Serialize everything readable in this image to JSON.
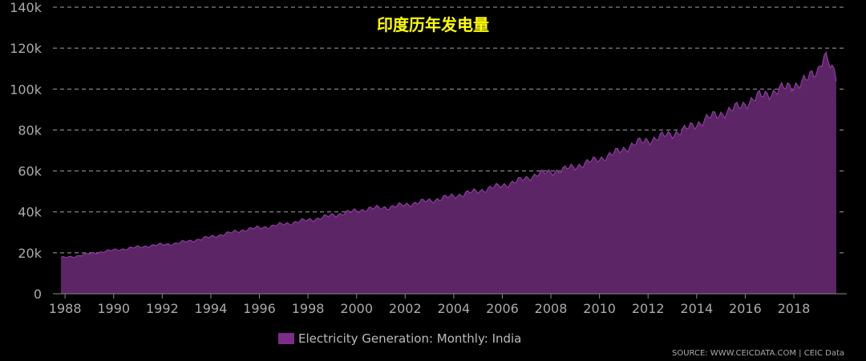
{
  "chart_data": {
    "type": "area",
    "title": "印度历年发电量",
    "xlabel": "",
    "ylabel": "",
    "x_range": [
      1987.83,
      2019.75
    ],
    "ylim": [
      0,
      140000
    ],
    "y_ticks": [
      0,
      20000,
      40000,
      60000,
      80000,
      100000,
      120000,
      140000
    ],
    "y_tick_labels": [
      "0",
      "20k",
      "40k",
      "60k",
      "80k",
      "100k",
      "120k",
      "140k"
    ],
    "x_ticks": [
      1988,
      1990,
      1992,
      1994,
      1996,
      1998,
      2000,
      2002,
      2004,
      2006,
      2008,
      2010,
      2012,
      2014,
      2016,
      2018
    ],
    "x_tick_labels": [
      "1988",
      "1990",
      "1992",
      "1994",
      "1996",
      "1998",
      "2000",
      "2002",
      "2004",
      "2006",
      "2008",
      "2010",
      "2012",
      "2014",
      "2016",
      "2018"
    ],
    "grid": "horizontal dashed",
    "legend_position": "bottom-center",
    "colors": {
      "background": "#000000",
      "area_fill": "#5b2566",
      "area_line": "#8e3a9e",
      "legend_swatch": "#7b2e88",
      "title": "#ffff00",
      "axis_text": "#aaaaaa",
      "grid": "#cccccc"
    },
    "series": [
      {
        "name": "Electricity Generation: Monthly: India",
        "points": [
          [
            1987.83,
            17500
          ],
          [
            1988.5,
            18500
          ],
          [
            1989.5,
            20500
          ],
          [
            1990.5,
            22000
          ],
          [
            1991.5,
            23500
          ],
          [
            1992.5,
            24500
          ],
          [
            1993.5,
            26500
          ],
          [
            1994.5,
            29000
          ],
          [
            1995.5,
            31500
          ],
          [
            1996.5,
            33000
          ],
          [
            1997.5,
            35000
          ],
          [
            1998.5,
            37000
          ],
          [
            1999.5,
            39500
          ],
          [
            2000.5,
            41500
          ],
          [
            2001.5,
            42500
          ],
          [
            2002.5,
            44500
          ],
          [
            2003.5,
            46500
          ],
          [
            2004.5,
            49000
          ],
          [
            2005.5,
            51500
          ],
          [
            2006.5,
            54500
          ],
          [
            2007.5,
            58500
          ],
          [
            2008.5,
            60500
          ],
          [
            2009.5,
            64000
          ],
          [
            2010.5,
            68000
          ],
          [
            2011.5,
            73500
          ],
          [
            2012.5,
            76500
          ],
          [
            2013.5,
            80000
          ],
          [
            2014.5,
            86000
          ],
          [
            2015.5,
            90000
          ],
          [
            2016.5,
            96000
          ],
          [
            2017.5,
            100000
          ],
          [
            2018.5,
            104000
          ],
          [
            2019.0,
            110000
          ],
          [
            2019.25,
            117000
          ],
          [
            2019.75,
            105000
          ]
        ]
      }
    ],
    "source": "SOURCE: WWW.CEICDATA.COM | CEIC Data"
  }
}
